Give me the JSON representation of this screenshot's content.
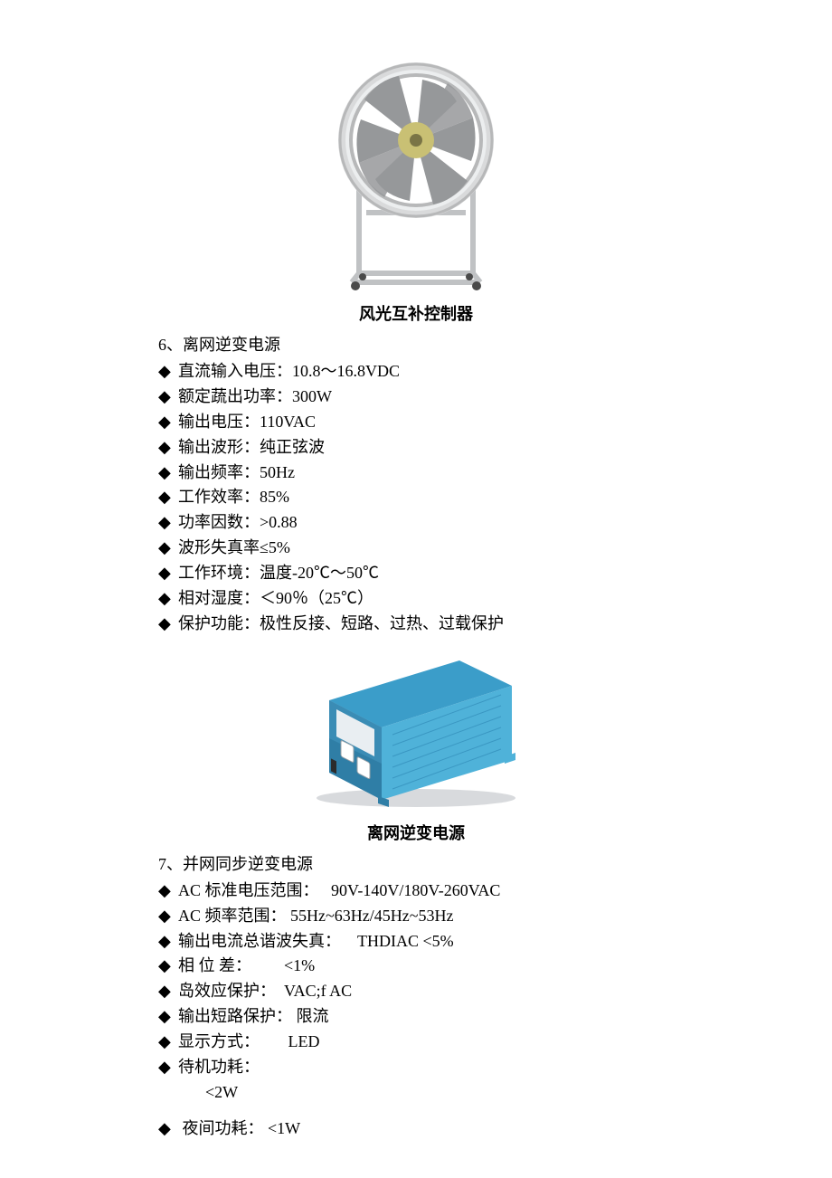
{
  "figure1": {
    "caption": "风光互补控制器",
    "housing_color": "#d9dadb",
    "rim_color": "#b7b8b9",
    "hub_color": "#c9c074",
    "blade_color": "#96989a",
    "frame_color": "#c0c2c4",
    "bg": "#ffffff"
  },
  "section6": {
    "title": "6、离网逆变电源",
    "bullet": "◆",
    "items": [
      "直流输入电压：10.8～16.8VDC",
      "额定蔬出功率：300W",
      "输出电压：110VAC",
      "输出波形：纯正弦波",
      "输出频率：50Hz",
      "工作效率：85%",
      "功率因数：>0.88",
      "波形失真率≤5%",
      "工作环境：温度-20℃～50℃",
      "相对湿度：＜90％（25℃）",
      "保护功能：极性反接、短路、过热、过载保护"
    ]
  },
  "figure2": {
    "caption": "离网逆变电源",
    "top_color": "#3b9dc9",
    "front_color": "#2f7ea6",
    "side_color": "#4fb2d9",
    "panel_color": "#e9eef2",
    "socket_color": "#ffffff",
    "shadow_color": "#9fa3a7",
    "bg": "#ffffff"
  },
  "section7": {
    "title": "7、并网同步逆变电源",
    "bullet": "◆",
    "items": [
      {
        "label": "AC 标准电压范围：",
        "value": "90V-140V/180V-260VAC",
        "gap": "   "
      },
      {
        "label": "AC 频率范围：",
        "value": "55Hz~63Hz/45Hz~53Hz",
        "gap": " "
      },
      {
        "label": "输出电流总谐波失真：",
        "value": "THDIAC <5%",
        "gap": "    "
      },
      {
        "label": "相 位 差：",
        "value": "<1%",
        "gap": "        "
      },
      {
        "label": "岛效应保护：",
        "value": "VAC;f AC",
        "gap": "  "
      },
      {
        "label": "输出短路保护：",
        "value": "限流",
        "gap": " "
      },
      {
        "label": "显示方式：",
        "value": "LED",
        "gap": "       "
      },
      {
        "label": "待机功耗：",
        "value": "",
        "gap": ""
      }
    ],
    "standby_sub": "<2W",
    "night": {
      "label": "夜间功耗：",
      "value": "<1W",
      "gap": "       "
    }
  }
}
